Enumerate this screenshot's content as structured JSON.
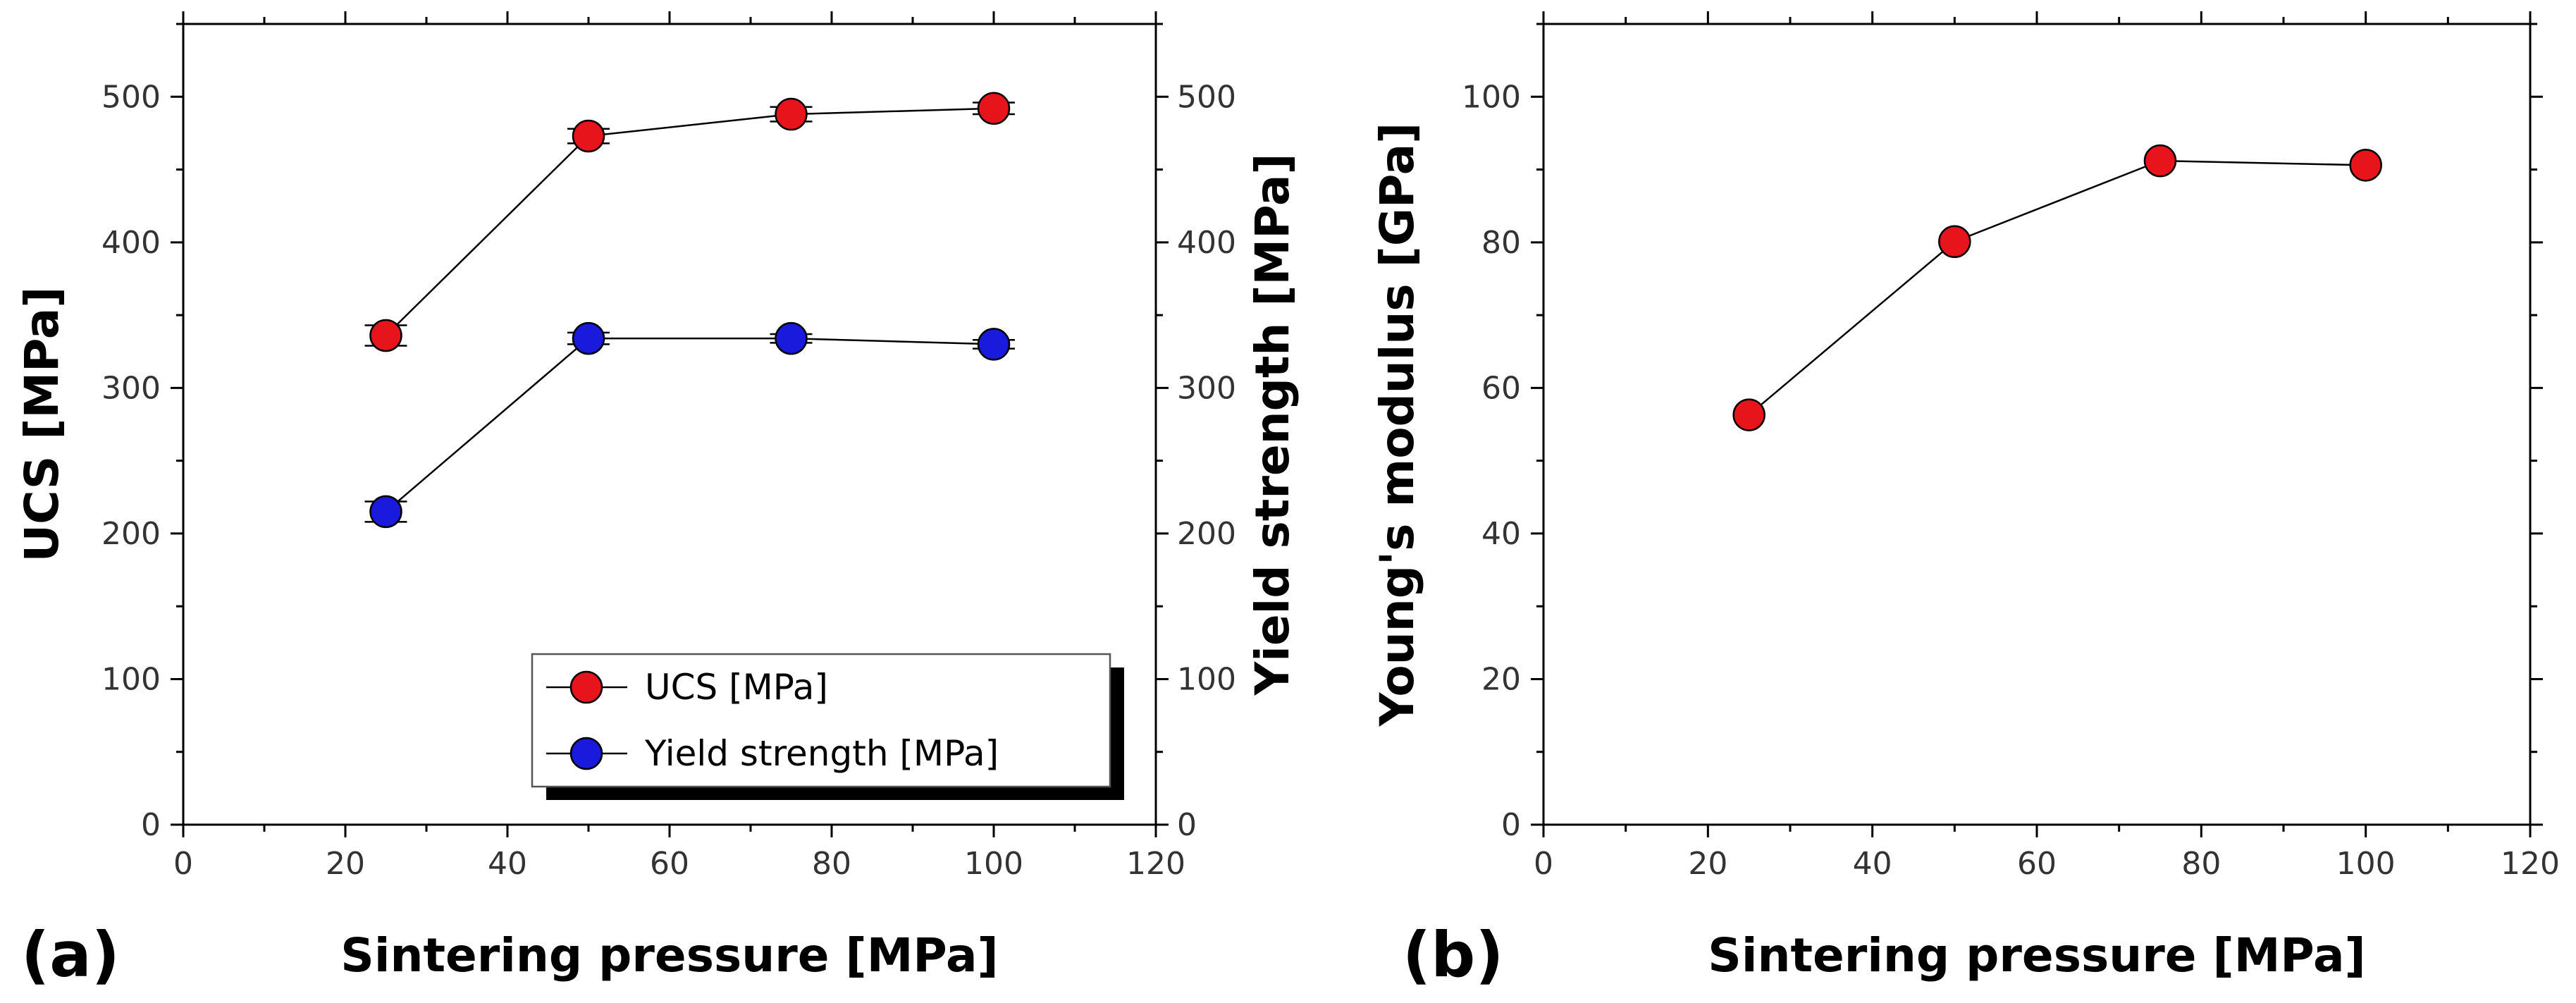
{
  "chart_data": [
    {
      "panel": "(a)",
      "type": "line",
      "xlabel": "Sintering pressure [MPa]",
      "ylabel": "UCS [MPa]",
      "y2label": "Yield strength [MPa]",
      "xlim": [
        0,
        120
      ],
      "ylim": [
        0,
        550
      ],
      "y2lim": [
        0,
        550
      ],
      "xticks": [
        0,
        20,
        40,
        60,
        80,
        100,
        120
      ],
      "yticks": [
        0,
        100,
        200,
        300,
        400,
        500
      ],
      "y2ticks": [
        0,
        100,
        200,
        300,
        400,
        500
      ],
      "legend_position": "bottom-right",
      "series": [
        {
          "name": "UCS [MPa]",
          "color": "#e8141b",
          "x": [
            25,
            50,
            75,
            100
          ],
          "values": [
            336,
            473,
            488,
            492
          ],
          "errors": [
            7,
            5,
            5,
            4
          ]
        },
        {
          "name": "Yield strength [MPa]",
          "color": "#1a1adc",
          "x": [
            25,
            50,
            75,
            100
          ],
          "values": [
            215,
            334,
            334,
            330
          ],
          "errors": [
            7,
            4,
            3,
            3
          ]
        }
      ]
    },
    {
      "panel": "(b)",
      "type": "line",
      "xlabel": "Sintering pressure [MPa]",
      "ylabel": "Young's modulus [GPa]",
      "xlim": [
        0,
        120
      ],
      "ylim": [
        0,
        110
      ],
      "xticks": [
        0,
        20,
        40,
        60,
        80,
        100,
        120
      ],
      "yticks": [
        0,
        20,
        40,
        60,
        80,
        100
      ],
      "series": [
        {
          "name": "Young's modulus [GPa]",
          "color": "#e8141b",
          "x": [
            25,
            50,
            75,
            100
          ],
          "values": [
            56.3,
            80.1,
            91.2,
            90.6
          ]
        }
      ]
    }
  ]
}
